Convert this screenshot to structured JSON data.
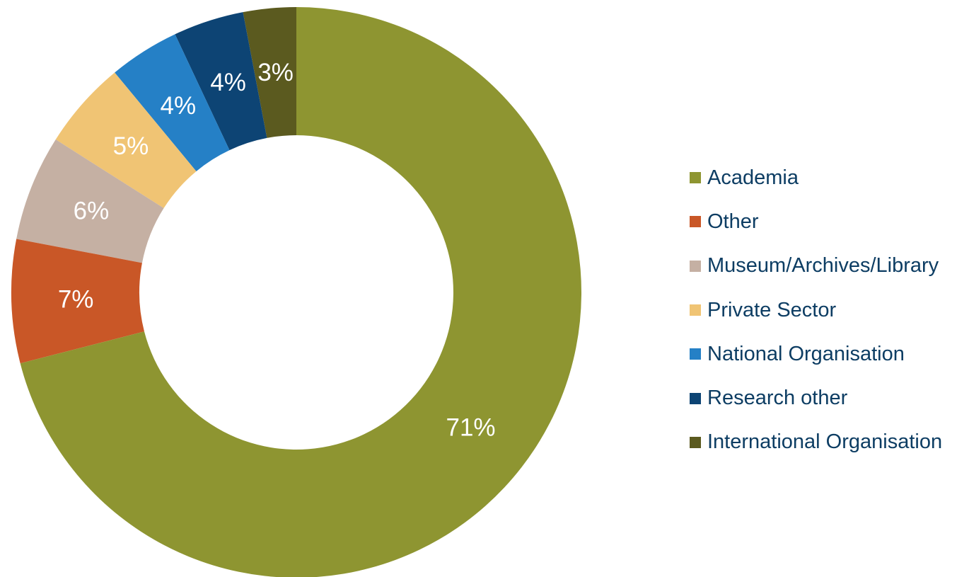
{
  "chart_data": {
    "type": "pie",
    "variant": "donut",
    "title": "",
    "labels": [
      "Academia",
      "Other",
      "Museum/Archives/Library",
      "Private Sector",
      "National Organisation",
      "Research other",
      "International Organisation"
    ],
    "values": [
      71,
      7,
      6,
      5,
      4,
      4,
      3
    ],
    "value_labels": [
      "71%",
      "7%",
      "6%",
      "5%",
      "4%",
      "4%",
      "3%"
    ],
    "colors": [
      "#8e9531",
      "#c95727",
      "#c5b0a3",
      "#f0c474",
      "#2580c6",
      "#0d4474",
      "#5b5a1f"
    ],
    "legend_position": "right",
    "start_angle": "top",
    "direction": "clockwise"
  }
}
